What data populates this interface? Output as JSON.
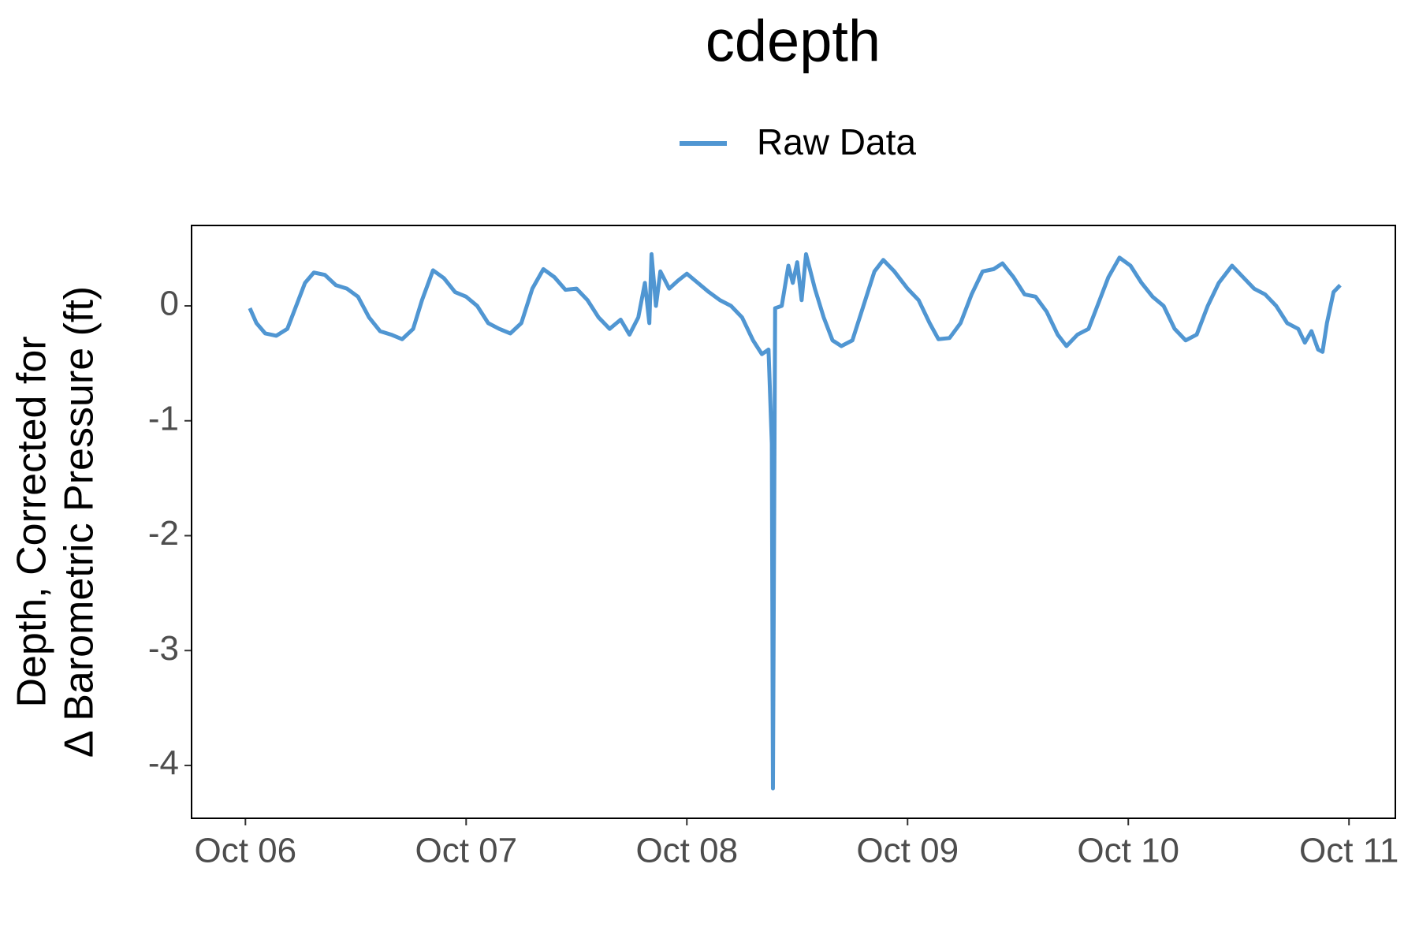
{
  "chart_data": {
    "type": "line",
    "title": "cdepth",
    "y_label": [
      "Depth, Corrected for",
      "Δ Barometric Pressure (ft)"
    ],
    "x": [
      6.02,
      6.05,
      6.09,
      6.14,
      6.19,
      6.23,
      6.27,
      6.31,
      6.36,
      6.41,
      6.46,
      6.51,
      6.56,
      6.61,
      6.66,
      6.71,
      6.76,
      6.8,
      6.85,
      6.9,
      6.95,
      7.0,
      7.05,
      7.1,
      7.15,
      7.2,
      7.25,
      7.3,
      7.35,
      7.4,
      7.45,
      7.5,
      7.55,
      7.6,
      7.65,
      7.7,
      7.74,
      7.78,
      7.81,
      7.83,
      7.84,
      7.86,
      7.88,
      7.92,
      7.96,
      8.0,
      8.05,
      8.1,
      8.15,
      8.2,
      8.25,
      8.3,
      8.34,
      8.37,
      8.385,
      8.39,
      8.395,
      8.4,
      8.43,
      8.46,
      8.48,
      8.5,
      8.52,
      8.54,
      8.58,
      8.62,
      8.66,
      8.7,
      8.75,
      8.8,
      8.85,
      8.89,
      8.94,
      9.0,
      9.05,
      9.1,
      9.14,
      9.19,
      9.24,
      9.29,
      9.34,
      9.39,
      9.43,
      9.48,
      9.53,
      9.58,
      9.63,
      9.68,
      9.72,
      9.77,
      9.82,
      9.87,
      9.91,
      9.96,
      10.01,
      10.06,
      10.11,
      10.16,
      10.21,
      10.26,
      10.31,
      10.36,
      10.41,
      10.47,
      10.52,
      10.57,
      10.62,
      10.67,
      10.72,
      10.77,
      10.8,
      10.83,
      10.86,
      10.88,
      10.9,
      10.93,
      10.96
    ],
    "series": [
      {
        "name": "Raw Data",
        "color": "#5096d2",
        "values": [
          -0.02,
          -0.15,
          -0.24,
          -0.26,
          -0.2,
          0.0,
          0.2,
          0.29,
          0.27,
          0.18,
          0.15,
          0.08,
          -0.1,
          -0.22,
          -0.25,
          -0.29,
          -0.2,
          0.05,
          0.31,
          0.24,
          0.12,
          0.08,
          0.0,
          -0.15,
          -0.2,
          -0.24,
          -0.15,
          0.15,
          0.32,
          0.25,
          0.14,
          0.15,
          0.05,
          -0.1,
          -0.2,
          -0.12,
          -0.25,
          -0.1,
          0.2,
          -0.15,
          0.45,
          0.0,
          0.3,
          0.15,
          0.22,
          0.28,
          0.2,
          0.12,
          0.05,
          0.0,
          -0.1,
          -0.3,
          -0.42,
          -0.38,
          -1.2,
          -4.2,
          -2.1,
          -0.02,
          0.0,
          0.35,
          0.2,
          0.38,
          0.05,
          0.45,
          0.15,
          -0.1,
          -0.3,
          -0.35,
          -0.3,
          0.0,
          0.3,
          0.4,
          0.3,
          0.15,
          0.05,
          -0.15,
          -0.29,
          -0.28,
          -0.15,
          0.1,
          0.3,
          0.32,
          0.37,
          0.25,
          0.1,
          0.08,
          -0.05,
          -0.25,
          -0.35,
          -0.25,
          -0.2,
          0.05,
          0.25,
          0.42,
          0.35,
          0.2,
          0.08,
          0.0,
          -0.2,
          -0.3,
          -0.25,
          0.0,
          0.2,
          0.35,
          0.25,
          0.15,
          0.1,
          0.0,
          -0.15,
          -0.2,
          -0.32,
          -0.22,
          -0.38,
          -0.4,
          -0.15,
          0.12,
          0.18
        ]
      }
    ],
    "xlim": [
      5.756,
      11.21
    ],
    "xticks": [
      {
        "value": 6,
        "label": "Oct 06"
      },
      {
        "value": 7,
        "label": "Oct 07"
      },
      {
        "value": 8,
        "label": "Oct 08"
      },
      {
        "value": 9,
        "label": "Oct 09"
      },
      {
        "value": 10,
        "label": "Oct 10"
      },
      {
        "value": 11,
        "label": "Oct 11"
      }
    ],
    "ylim": [
      -4.46,
      0.7
    ],
    "yticks": [
      -4,
      -3,
      -2,
      -1,
      0
    ],
    "legend": "top"
  }
}
